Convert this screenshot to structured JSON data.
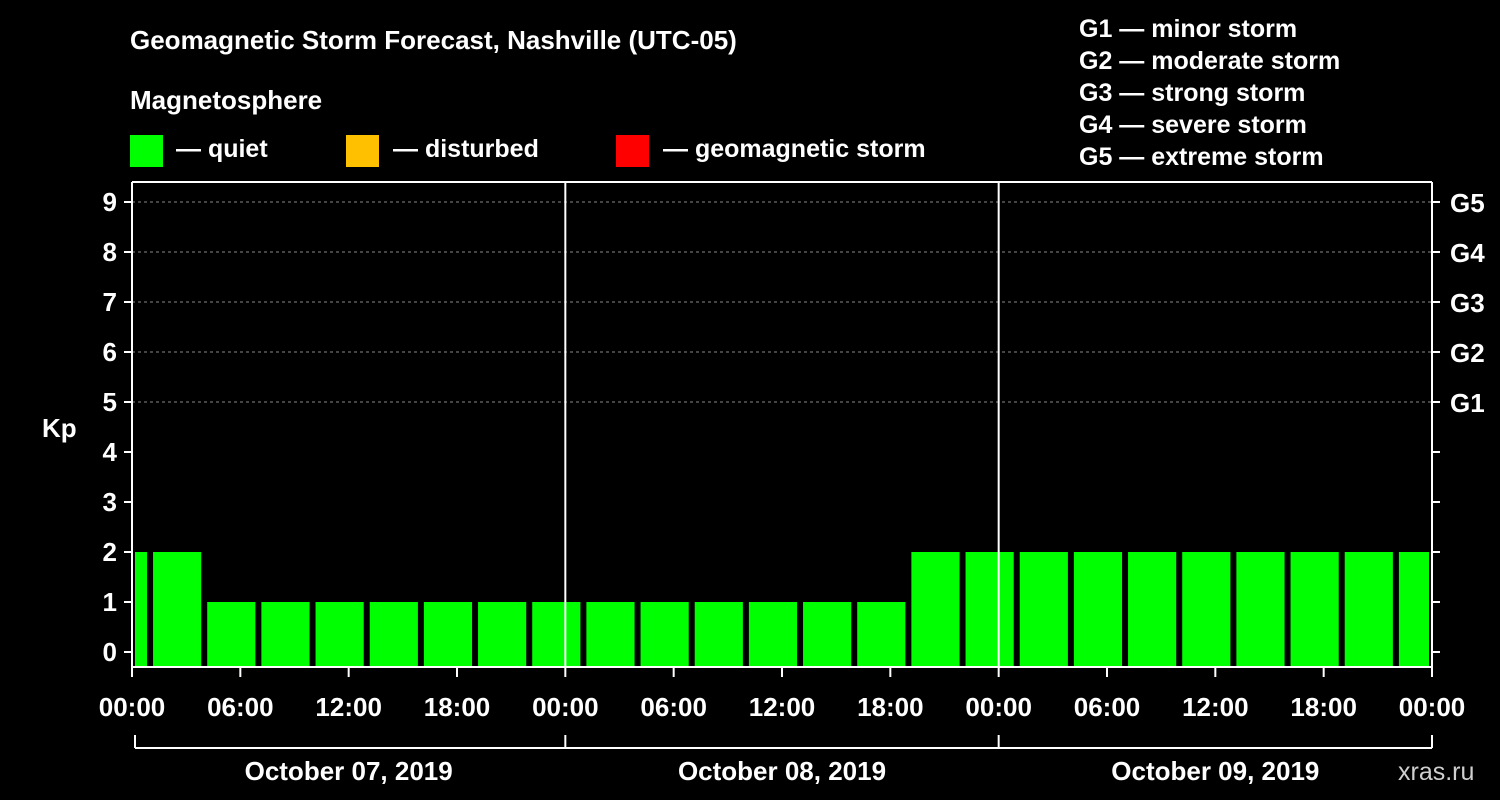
{
  "chart_data": {
    "type": "bar",
    "title": "Geomagnetic Storm Forecast, Nashville (UTC-05)",
    "ylabel": "Kp",
    "ylim": [
      0,
      9
    ],
    "y_ticks": [
      "0",
      "1",
      "2",
      "3",
      "4",
      "5",
      "6",
      "7",
      "8",
      "9"
    ],
    "x_start_hour": 0,
    "x_end_hour": 72,
    "x_tick_labels": [
      "00:00",
      "06:00",
      "12:00",
      "18:00",
      "00:00",
      "06:00",
      "12:00",
      "18:00",
      "00:00",
      "06:00",
      "12:00",
      "18:00",
      "00:00"
    ],
    "days": [
      "October 07, 2019",
      "October 08, 2019",
      "October 09, 2019"
    ],
    "storm_levels": [
      {
        "label": "G1",
        "kp": 5
      },
      {
        "label": "G2",
        "kp": 6
      },
      {
        "label": "G3",
        "kp": 7
      },
      {
        "label": "G4",
        "kp": 8
      },
      {
        "label": "G5",
        "kp": 9
      }
    ],
    "bars": [
      {
        "start_hour": 0,
        "end_hour": 1,
        "kp": 2
      },
      {
        "start_hour": 1,
        "end_hour": 4,
        "kp": 2
      },
      {
        "start_hour": 4,
        "end_hour": 7,
        "kp": 1
      },
      {
        "start_hour": 7,
        "end_hour": 10,
        "kp": 1
      },
      {
        "start_hour": 10,
        "end_hour": 13,
        "kp": 1
      },
      {
        "start_hour": 13,
        "end_hour": 16,
        "kp": 1
      },
      {
        "start_hour": 16,
        "end_hour": 19,
        "kp": 1
      },
      {
        "start_hour": 19,
        "end_hour": 22,
        "kp": 1
      },
      {
        "start_hour": 22,
        "end_hour": 25,
        "kp": 1
      },
      {
        "start_hour": 25,
        "end_hour": 28,
        "kp": 1
      },
      {
        "start_hour": 28,
        "end_hour": 31,
        "kp": 1
      },
      {
        "start_hour": 31,
        "end_hour": 34,
        "kp": 1
      },
      {
        "start_hour": 34,
        "end_hour": 37,
        "kp": 1
      },
      {
        "start_hour": 37,
        "end_hour": 40,
        "kp": 1
      },
      {
        "start_hour": 40,
        "end_hour": 43,
        "kp": 1
      },
      {
        "start_hour": 43,
        "end_hour": 46,
        "kp": 2
      },
      {
        "start_hour": 46,
        "end_hour": 49,
        "kp": 2
      },
      {
        "start_hour": 49,
        "end_hour": 52,
        "kp": 2
      },
      {
        "start_hour": 52,
        "end_hour": 55,
        "kp": 2
      },
      {
        "start_hour": 55,
        "end_hour": 58,
        "kp": 2
      },
      {
        "start_hour": 58,
        "end_hour": 61,
        "kp": 2
      },
      {
        "start_hour": 61,
        "end_hour": 64,
        "kp": 2
      },
      {
        "start_hour": 64,
        "end_hour": 67,
        "kp": 2
      },
      {
        "start_hour": 67,
        "end_hour": 70,
        "kp": 2
      },
      {
        "start_hour": 70,
        "end_hour": 72,
        "kp": 2
      }
    ]
  },
  "legend": {
    "heading": "Magnetosphere",
    "items": [
      {
        "label": "— quiet",
        "color": "#00ff00"
      },
      {
        "label": "— disturbed",
        "color": "#ffc000"
      },
      {
        "label": "— geomagnetic storm",
        "color": "#ff0000"
      }
    ]
  },
  "storm_scale": [
    "G1 — minor storm",
    "G2 — moderate storm",
    "G3 — strong storm",
    "G4 — severe storm",
    "G5 — extreme storm"
  ],
  "colors": {
    "quiet": "#00ff00",
    "disturbed": "#ffc000",
    "storm": "#ff0000",
    "axis": "#ffffff",
    "grid": "#888888"
  },
  "watermark": "xras.ru"
}
